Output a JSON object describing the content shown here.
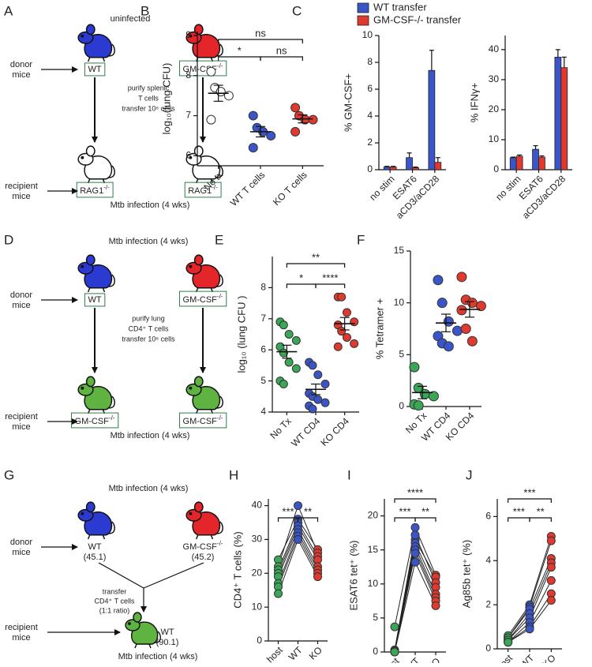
{
  "panel_labels": [
    "A",
    "B",
    "C",
    "D",
    "E",
    "F",
    "G",
    "H",
    "I",
    "J"
  ],
  "diagrams": [
    {
      "header": "uninfected",
      "donor_label": [
        "donor",
        "mice"
      ],
      "donors": [
        {
          "label": "WT"
        },
        {
          "label": "GM-CSF",
          "sup": "-/-"
        }
      ],
      "procedure": [
        "purify splenic",
        "T cells",
        "transfer 10⁶ cells"
      ],
      "recipient_label": [
        "recipient",
        "mice"
      ],
      "recipients": [
        {
          "label": "RAG1",
          "sup": "-/-"
        },
        {
          "label": "RAG1",
          "sup": "-/-"
        }
      ],
      "footer": "Mtb infection (4 wks)"
    },
    {
      "header": "Mtb infection (4 wks)",
      "donor_label": [
        "donor",
        "mice"
      ],
      "donors": [
        {
          "label": "WT"
        },
        {
          "label": "GM-CSF",
          "sup": "-/-"
        }
      ],
      "procedure": [
        "purify lung",
        "CD4⁺ T cells",
        "transfer 10⁶ cells"
      ],
      "recipient_label": [
        "recipient",
        "mice"
      ],
      "recipients": [
        {
          "label": "GM-CSF",
          "sup": "-/-"
        },
        {
          "label": "GM-CSF",
          "sup": "-/-"
        }
      ],
      "footer": "Mtb infection (4 wks)"
    },
    {
      "header": "Mtb infection (4 wks)",
      "donor_label": [
        "donor",
        "mice"
      ],
      "donors": [
        {
          "label": "WT",
          "note": "(45.1)"
        },
        {
          "label": "GM-CSF",
          "sup": "-/-",
          "note": "(45.2)"
        }
      ],
      "procedure": [
        "transfer",
        "CD4⁺ T cells",
        "(1:1 ratio)"
      ],
      "recipient_label": [
        "recipient",
        "mice"
      ],
      "recipients": [
        {
          "label": "WT",
          "note": "(90.1)"
        }
      ],
      "footer": "Mtb infection (4 wks)"
    }
  ],
  "chart_data": [
    {
      "type": "dot",
      "ylabel": "log₁₀(lung CFU)",
      "categories": [
        "No tx",
        "WT T cells",
        "KO T cells"
      ],
      "colors": [
        "#ffffff",
        "#3a55c8",
        "#e0392e"
      ],
      "points": [
        [
          8.1,
          7.7,
          7.6,
          7.5,
          6.9
        ],
        [
          7.0,
          6.7,
          6.6,
          6.5,
          6.2
        ],
        [
          7.2,
          7.0,
          6.9,
          6.9,
          6.6
        ]
      ],
      "means": [
        7.56,
        6.6,
        6.92
      ],
      "errors": [
        0.2,
        0.13,
        0.1
      ],
      "ylim": [
        5.75,
        9.1
      ],
      "yticks": [
        6,
        7,
        8,
        9
      ],
      "comparisons": [
        {
          "between": [
            "No tx",
            "KO T cells"
          ],
          "label": "ns"
        },
        {
          "between": [
            "No tx",
            "WT T cells"
          ],
          "label": "*"
        },
        {
          "between": [
            "WT T cells",
            "KO T cells"
          ],
          "label": "ns"
        }
      ]
    },
    {
      "type": "bar",
      "ylabel": "% GM-CSF+",
      "categories": [
        "no stim",
        "ESAT6",
        "aCD3/aCD28"
      ],
      "series": [
        {
          "name": "WT transfer",
          "color": "#3a55c8",
          "values": [
            0.2,
            0.9,
            7.4
          ],
          "errors": [
            0.05,
            0.35,
            1.5
          ]
        },
        {
          "name": "GM-CSF-/- transfer",
          "color": "#e0392e",
          "values": [
            0.2,
            0.15,
            0.55
          ],
          "errors": [
            0.05,
            0.05,
            0.35
          ]
        }
      ],
      "ylim": [
        0,
        10
      ],
      "yticks": [
        0,
        2,
        4,
        6,
        8,
        10
      ],
      "legend": "top"
    },
    {
      "type": "bar",
      "ylabel": "% IFNγ+",
      "categories": [
        "no stim",
        "ESAT6",
        "aCD3/aCD28"
      ],
      "series": [
        {
          "color": "#3a55c8",
          "values": [
            4,
            6.8,
            37.5
          ],
          "errors": [
            0.2,
            1.2,
            2.5
          ]
        },
        {
          "color": "#e0392e",
          "values": [
            4.5,
            4.2,
            34
          ],
          "errors": [
            0.4,
            0.4,
            3.5
          ]
        }
      ],
      "ylim": [
        0,
        44.7
      ],
      "yticks": [
        0,
        10,
        20,
        30,
        40
      ]
    },
    {
      "type": "dot",
      "ylabel": "log₁₀ (lung CFU )",
      "categories": [
        "No Tx",
        "WT CD4",
        "KO CD4"
      ],
      "colors": [
        "#3aa657",
        "#3a55c8",
        "#e0392e"
      ],
      "points": [
        [
          6.9,
          6.8,
          6.5,
          6.3,
          6.1,
          5.9,
          5.6,
          5.4,
          5.0,
          4.9
        ],
        [
          5.6,
          5.5,
          5.2,
          4.9,
          4.6,
          4.5,
          4.4,
          4.3,
          4.2,
          4.1
        ],
        [
          7.7,
          7.7,
          7.2,
          6.9,
          6.8,
          6.6,
          6.4,
          6.2,
          6.1
        ]
      ],
      "means": [
        5.94,
        4.73,
        6.84
      ],
      "errors": [
        0.21,
        0.17,
        0.2
      ],
      "ylim": [
        4,
        9
      ],
      "yticks": [
        4,
        5,
        6,
        7,
        8
      ],
      "comparisons": [
        {
          "between": [
            "No Tx",
            "KO CD4"
          ],
          "label": "**"
        },
        {
          "between": [
            "No Tx",
            "WT CD4"
          ],
          "label": "*"
        },
        {
          "between": [
            "WT CD4",
            "KO CD4"
          ],
          "label": "****"
        }
      ]
    },
    {
      "type": "dot",
      "ylabel": "% Tetramer +",
      "categories": [
        "No Tx",
        "WT CD4",
        "KO CD4"
      ],
      "colors": [
        "#3aa657",
        "#3a55c8",
        "#e0392e"
      ],
      "points": [
        [
          3.8,
          1.8,
          1.2,
          1.0,
          0.2,
          0.1
        ],
        [
          12.2,
          10.0,
          8.2,
          7.3,
          6.8,
          6.1,
          5.8
        ],
        [
          12.5,
          10.3,
          10.0,
          9.7,
          9.3,
          7.5,
          6.3
        ]
      ],
      "means": [
        1.35,
        8.06,
        9.37
      ],
      "errors": [
        0.6,
        0.85,
        0.75
      ],
      "ylim": [
        0,
        15
      ],
      "yticks": [
        0,
        5,
        10,
        15
      ]
    },
    {
      "type": "paired",
      "ylabel": "CD4⁺ T cells (%)",
      "categories": [
        "host",
        "WT",
        "KO"
      ],
      "colors": [
        "#3aa657",
        "#3a55c8",
        "#e0392e"
      ],
      "series": [
        {
          "values": [
            24,
            36,
            27
          ]
        },
        {
          "values": [
            22,
            40,
            26
          ]
        },
        {
          "values": [
            21,
            35,
            25
          ]
        },
        {
          "values": [
            20,
            34,
            24
          ]
        },
        {
          "values": [
            19,
            33,
            22
          ]
        },
        {
          "values": [
            17,
            32,
            21
          ]
        },
        {
          "values": [
            16,
            31,
            20
          ]
        },
        {
          "values": [
            14,
            30,
            19
          ]
        }
      ],
      "ylim": [
        0,
        42
      ],
      "yticks": [
        0,
        10,
        20,
        30,
        40
      ],
      "comparisons": [
        {
          "between": [
            "host",
            "WT"
          ],
          "label": "***"
        },
        {
          "between": [
            "WT",
            "KO"
          ],
          "label": "**"
        }
      ]
    },
    {
      "type": "paired",
      "ylabel": "ESAT6 tet⁺ (%)",
      "categories": [
        "host",
        "WT",
        "KO"
      ],
      "colors": [
        "#3aa657",
        "#3a55c8",
        "#e0392e"
      ],
      "series": [
        {
          "values": [
            3.7,
            18.3,
            11.3
          ]
        },
        {
          "values": [
            0.3,
            16.5,
            11
          ]
        },
        {
          "values": [
            0.2,
            17.2,
            10.2
          ]
        },
        {
          "values": [
            0.1,
            16,
            9.5
          ]
        },
        {
          "values": [
            0.1,
            15.5,
            8.5
          ]
        },
        {
          "values": [
            0.1,
            15,
            8
          ]
        },
        {
          "values": [
            0,
            14.5,
            7.5
          ]
        },
        {
          "values": [
            0,
            13.2,
            6.8
          ]
        }
      ],
      "ylim": [
        0,
        22.5
      ],
      "yticks": [
        0,
        5,
        10,
        15,
        20
      ],
      "comparisons": [
        {
          "between": [
            "host",
            "KO"
          ],
          "label": "****"
        },
        {
          "between": [
            "host",
            "WT"
          ],
          "label": "***"
        },
        {
          "between": [
            "WT",
            "KO"
          ],
          "label": "**"
        }
      ]
    },
    {
      "type": "paired",
      "ylabel": "Ag85b tet⁺ (%)",
      "categories": [
        "host",
        "WT",
        "KO"
      ],
      "colors": [
        "#3aa657",
        "#3a55c8",
        "#e0392e"
      ],
      "series": [
        {
          "values": [
            0.6,
            2.0,
            5.1
          ]
        },
        {
          "values": [
            0.5,
            1.9,
            4.9
          ]
        },
        {
          "values": [
            0.5,
            1.8,
            4.1
          ]
        },
        {
          "values": [
            0.4,
            1.6,
            3.9
          ]
        },
        {
          "values": [
            0.4,
            1.4,
            3.7
          ]
        },
        {
          "values": [
            0.3,
            1.2,
            3.1
          ]
        },
        {
          "values": [
            0.3,
            1.0,
            2.5
          ]
        },
        {
          "values": [
            0.3,
            0.9,
            2.2
          ]
        }
      ],
      "ylim": [
        0,
        6.8
      ],
      "yticks": [
        0,
        2,
        4,
        6
      ],
      "comparisons": [
        {
          "between": [
            "host",
            "KO"
          ],
          "label": "***"
        },
        {
          "between": [
            "host",
            "WT"
          ],
          "label": "***"
        },
        {
          "between": [
            "WT",
            "KO"
          ],
          "label": "**"
        }
      ]
    }
  ]
}
